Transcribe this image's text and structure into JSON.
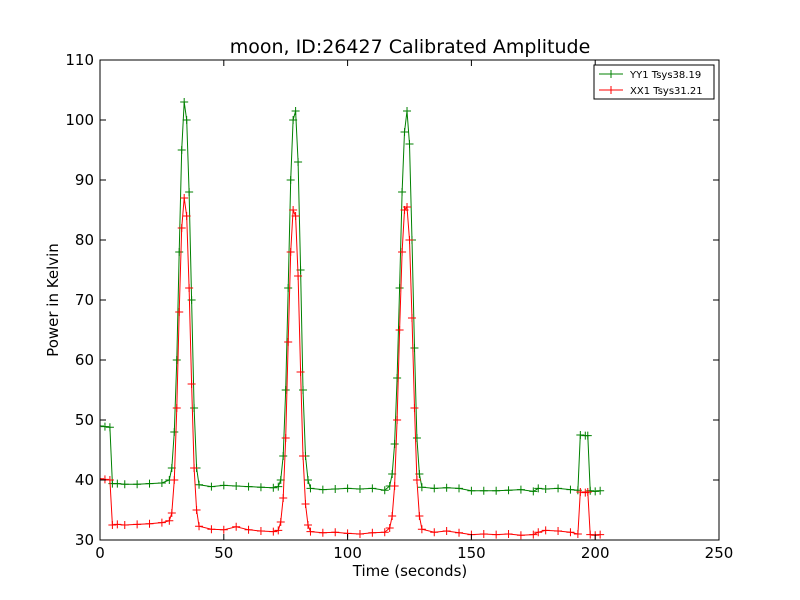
{
  "chart_data": {
    "type": "line",
    "title": "moon, ID:26427 Calibrated Amplitude",
    "xlabel": "Time (seconds)",
    "ylabel": "Power in Kelvin",
    "xlim": [
      0,
      250
    ],
    "ylim": [
      30,
      110
    ],
    "xticks": [
      0,
      50,
      100,
      150,
      200,
      250
    ],
    "yticks": [
      30,
      40,
      50,
      60,
      70,
      80,
      90,
      100,
      110
    ],
    "grid": false,
    "legend_position": "top-right",
    "series": [
      {
        "name": "YY1 Tsys38.19",
        "color": "#008000",
        "marker": "+",
        "points": [
          [
            0,
            49.0
          ],
          [
            2,
            48.9
          ],
          [
            4,
            48.8
          ],
          [
            5,
            39.4
          ],
          [
            7,
            39.4
          ],
          [
            10,
            39.3
          ],
          [
            15,
            39.3
          ],
          [
            20,
            39.4
          ],
          [
            25,
            39.5
          ],
          [
            28,
            40.0
          ],
          [
            29,
            42.0
          ],
          [
            30,
            48.0
          ],
          [
            31,
            60.0
          ],
          [
            32,
            78.0
          ],
          [
            33,
            95.0
          ],
          [
            34,
            103.0
          ],
          [
            35,
            100.0
          ],
          [
            36,
            88.0
          ],
          [
            37,
            70.0
          ],
          [
            38,
            52.0
          ],
          [
            39,
            42.0
          ],
          [
            40,
            39.2
          ],
          [
            45,
            38.9
          ],
          [
            50,
            39.1
          ],
          [
            55,
            39.0
          ],
          [
            60,
            38.9
          ],
          [
            65,
            38.8
          ],
          [
            70,
            38.7
          ],
          [
            72,
            38.9
          ],
          [
            73,
            40.0
          ],
          [
            74,
            44.0
          ],
          [
            75,
            55.0
          ],
          [
            76,
            72.0
          ],
          [
            77,
            90.0
          ],
          [
            78,
            100.0
          ],
          [
            79,
            101.5
          ],
          [
            80,
            93.0
          ],
          [
            81,
            75.0
          ],
          [
            82,
            55.0
          ],
          [
            83,
            44.0
          ],
          [
            84,
            40.0
          ],
          [
            85,
            38.6
          ],
          [
            90,
            38.4
          ],
          [
            95,
            38.5
          ],
          [
            100,
            38.6
          ],
          [
            105,
            38.5
          ],
          [
            110,
            38.6
          ],
          [
            115,
            38.3
          ],
          [
            117,
            39.0
          ],
          [
            118,
            41.0
          ],
          [
            119,
            46.0
          ],
          [
            120,
            57.0
          ],
          [
            121,
            72.0
          ],
          [
            122,
            88.0
          ],
          [
            123,
            98.0
          ],
          [
            124,
            101.5
          ],
          [
            125,
            96.0
          ],
          [
            126,
            80.0
          ],
          [
            127,
            62.0
          ],
          [
            128,
            47.0
          ],
          [
            129,
            41.0
          ],
          [
            130,
            38.8
          ],
          [
            135,
            38.6
          ],
          [
            140,
            38.7
          ],
          [
            145,
            38.6
          ],
          [
            150,
            38.2
          ],
          [
            155,
            38.2
          ],
          [
            160,
            38.2
          ],
          [
            165,
            38.3
          ],
          [
            170,
            38.4
          ],
          [
            175,
            38.1
          ],
          [
            177,
            38.6
          ],
          [
            180,
            38.5
          ],
          [
            185,
            38.6
          ],
          [
            190,
            38.4
          ],
          [
            193,
            38.3
          ],
          [
            194,
            47.5
          ],
          [
            196,
            47.4
          ],
          [
            197,
            47.4
          ],
          [
            198,
            38.2
          ],
          [
            200,
            38.1
          ],
          [
            202,
            38.2
          ]
        ]
      },
      {
        "name": "XX1 Tsys31.21",
        "color": "#ff0000",
        "marker": "+",
        "points": [
          [
            0,
            40.2
          ],
          [
            2,
            40.1
          ],
          [
            4,
            40.0
          ],
          [
            5,
            32.5
          ],
          [
            7,
            32.6
          ],
          [
            10,
            32.5
          ],
          [
            15,
            32.6
          ],
          [
            20,
            32.7
          ],
          [
            25,
            32.9
          ],
          [
            28,
            33.2
          ],
          [
            29,
            34.5
          ],
          [
            30,
            40.0
          ],
          [
            31,
            52.0
          ],
          [
            32,
            68.0
          ],
          [
            33,
            82.0
          ],
          [
            34,
            87.0
          ],
          [
            35,
            84.0
          ],
          [
            36,
            72.0
          ],
          [
            37,
            56.0
          ],
          [
            38,
            42.0
          ],
          [
            39,
            35.0
          ],
          [
            40,
            32.3
          ],
          [
            45,
            31.8
          ],
          [
            50,
            31.7
          ],
          [
            55,
            32.2
          ],
          [
            60,
            31.7
          ],
          [
            65,
            31.5
          ],
          [
            70,
            31.4
          ],
          [
            72,
            31.6
          ],
          [
            73,
            33.0
          ],
          [
            74,
            37.0
          ],
          [
            75,
            47.0
          ],
          [
            76,
            63.0
          ],
          [
            77,
            78.0
          ],
          [
            78,
            85.0
          ],
          [
            79,
            84.0
          ],
          [
            80,
            74.0
          ],
          [
            81,
            58.0
          ],
          [
            82,
            44.0
          ],
          [
            83,
            36.0
          ],
          [
            84,
            32.5
          ],
          [
            85,
            31.4
          ],
          [
            90,
            31.2
          ],
          [
            95,
            31.3
          ],
          [
            100,
            31.1
          ],
          [
            105,
            31.0
          ],
          [
            110,
            31.2
          ],
          [
            115,
            31.3
          ],
          [
            117,
            32.0
          ],
          [
            118,
            34.0
          ],
          [
            119,
            39.0
          ],
          [
            120,
            50.0
          ],
          [
            121,
            65.0
          ],
          [
            122,
            78.0
          ],
          [
            123,
            85.0
          ],
          [
            124,
            85.5
          ],
          [
            125,
            80.0
          ],
          [
            126,
            67.0
          ],
          [
            127,
            52.0
          ],
          [
            128,
            40.0
          ],
          [
            129,
            34.0
          ],
          [
            130,
            31.8
          ],
          [
            135,
            31.3
          ],
          [
            140,
            31.5
          ],
          [
            145,
            31.2
          ],
          [
            150,
            30.9
          ],
          [
            155,
            31.0
          ],
          [
            160,
            30.9
          ],
          [
            165,
            31.0
          ],
          [
            170,
            30.8
          ],
          [
            175,
            30.9
          ],
          [
            177,
            31.3
          ],
          [
            180,
            31.6
          ],
          [
            185,
            31.5
          ],
          [
            190,
            31.3
          ],
          [
            193,
            31.0
          ],
          [
            194,
            38.0
          ],
          [
            196,
            37.9
          ],
          [
            197,
            38.0
          ],
          [
            198,
            30.9
          ],
          [
            200,
            30.8
          ],
          [
            202,
            30.9
          ]
        ]
      }
    ]
  }
}
